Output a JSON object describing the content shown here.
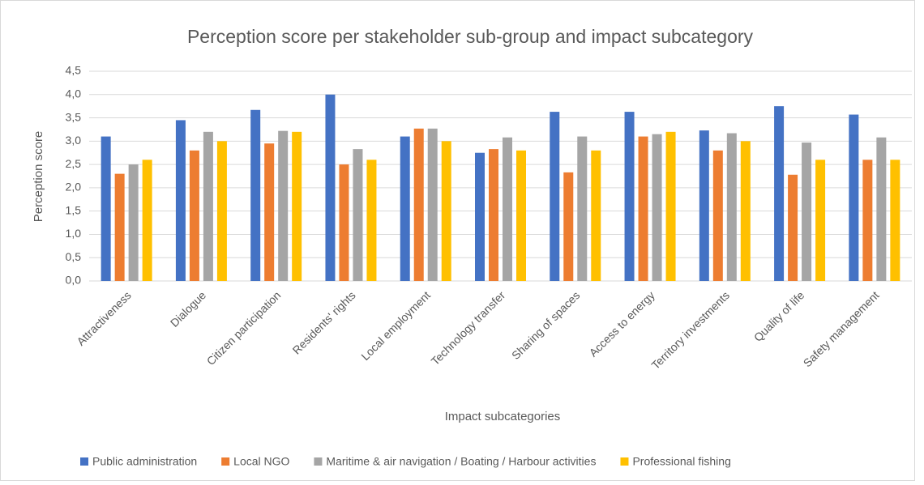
{
  "chart_data": {
    "type": "bar",
    "title": "Perception score per stakeholder sub-group and  impact subcategory",
    "x_label": "Impact subcategories",
    "y_label": "Perception score",
    "categories": [
      "Attractiveness",
      "Dialogue",
      "Citizen participation",
      "Residents' rights",
      "Local employment",
      "Technology transfer",
      "Sharing of spaces",
      "Access to energy",
      "Territory investments",
      "Quality of life",
      "Safety management"
    ],
    "series": [
      {
        "name": "Public administration",
        "color": "#4472c4",
        "values": [
          3.1,
          3.45,
          3.67,
          4.0,
          3.1,
          2.75,
          3.63,
          3.63,
          3.23,
          3.75,
          3.57
        ]
      },
      {
        "name": "Local NGO",
        "color": "#ed7d31",
        "values": [
          2.3,
          2.8,
          2.95,
          2.5,
          3.27,
          2.83,
          2.33,
          3.1,
          2.8,
          2.28,
          2.6
        ]
      },
      {
        "name": "Maritime & air navigation / Boating / Harbour activities",
        "color": "#a5a5a5",
        "values": [
          2.5,
          3.2,
          3.22,
          2.83,
          3.27,
          3.08,
          3.1,
          3.15,
          3.17,
          2.97,
          3.08
        ]
      },
      {
        "name": "Professional fishing",
        "color": "#ffc000",
        "values": [
          2.6,
          3.0,
          3.2,
          2.6,
          3.0,
          2.8,
          2.8,
          3.2,
          3.0,
          2.6,
          2.6
        ]
      }
    ],
    "ylim": [
      0,
      4.5
    ],
    "yticks": [
      {
        "value": 0,
        "label": "0,0"
      },
      {
        "value": 0.5,
        "label": "0,5"
      },
      {
        "value": 1,
        "label": "1,0"
      },
      {
        "value": 1.5,
        "label": "1,5"
      },
      {
        "value": 2,
        "label": "2,0"
      },
      {
        "value": 2.5,
        "label": "2,5"
      },
      {
        "value": 3,
        "label": "3,0"
      },
      {
        "value": 3.5,
        "label": "3,5"
      },
      {
        "value": 4,
        "label": "4,0"
      },
      {
        "value": 4.5,
        "label": "4,5"
      }
    ],
    "grid": true,
    "legend": "bottom"
  }
}
